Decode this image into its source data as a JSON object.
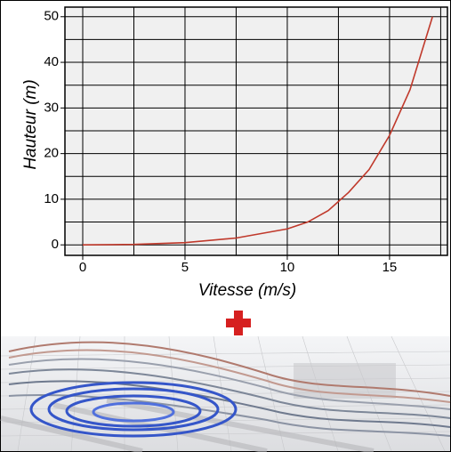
{
  "chart_data": {
    "type": "line",
    "x_label": "Vitesse (m/s)",
    "y_label": "Hauteur (m)",
    "x": [
      0,
      2.5,
      5,
      7.5,
      10,
      11,
      12,
      12.5,
      13,
      14,
      15,
      16,
      17.1
    ],
    "values": [
      0,
      0.1,
      0.5,
      1.5,
      3.5,
      5,
      7.5,
      9.5,
      11.5,
      16.5,
      24,
      34,
      50
    ],
    "color": "#c0392b",
    "xlim": [
      -0.87,
      17.83
    ],
    "ylim": [
      -2.3,
      52.1
    ],
    "xticks": [
      0,
      5,
      10,
      15
    ],
    "yticks": [
      0,
      10,
      20,
      30,
      40,
      50
    ],
    "x_minor_ticks": [
      2.5,
      7.5,
      12.5,
      17.5
    ],
    "y_minor_ticks": [
      5,
      15,
      25,
      35,
      45
    ],
    "grid": true
  }
}
